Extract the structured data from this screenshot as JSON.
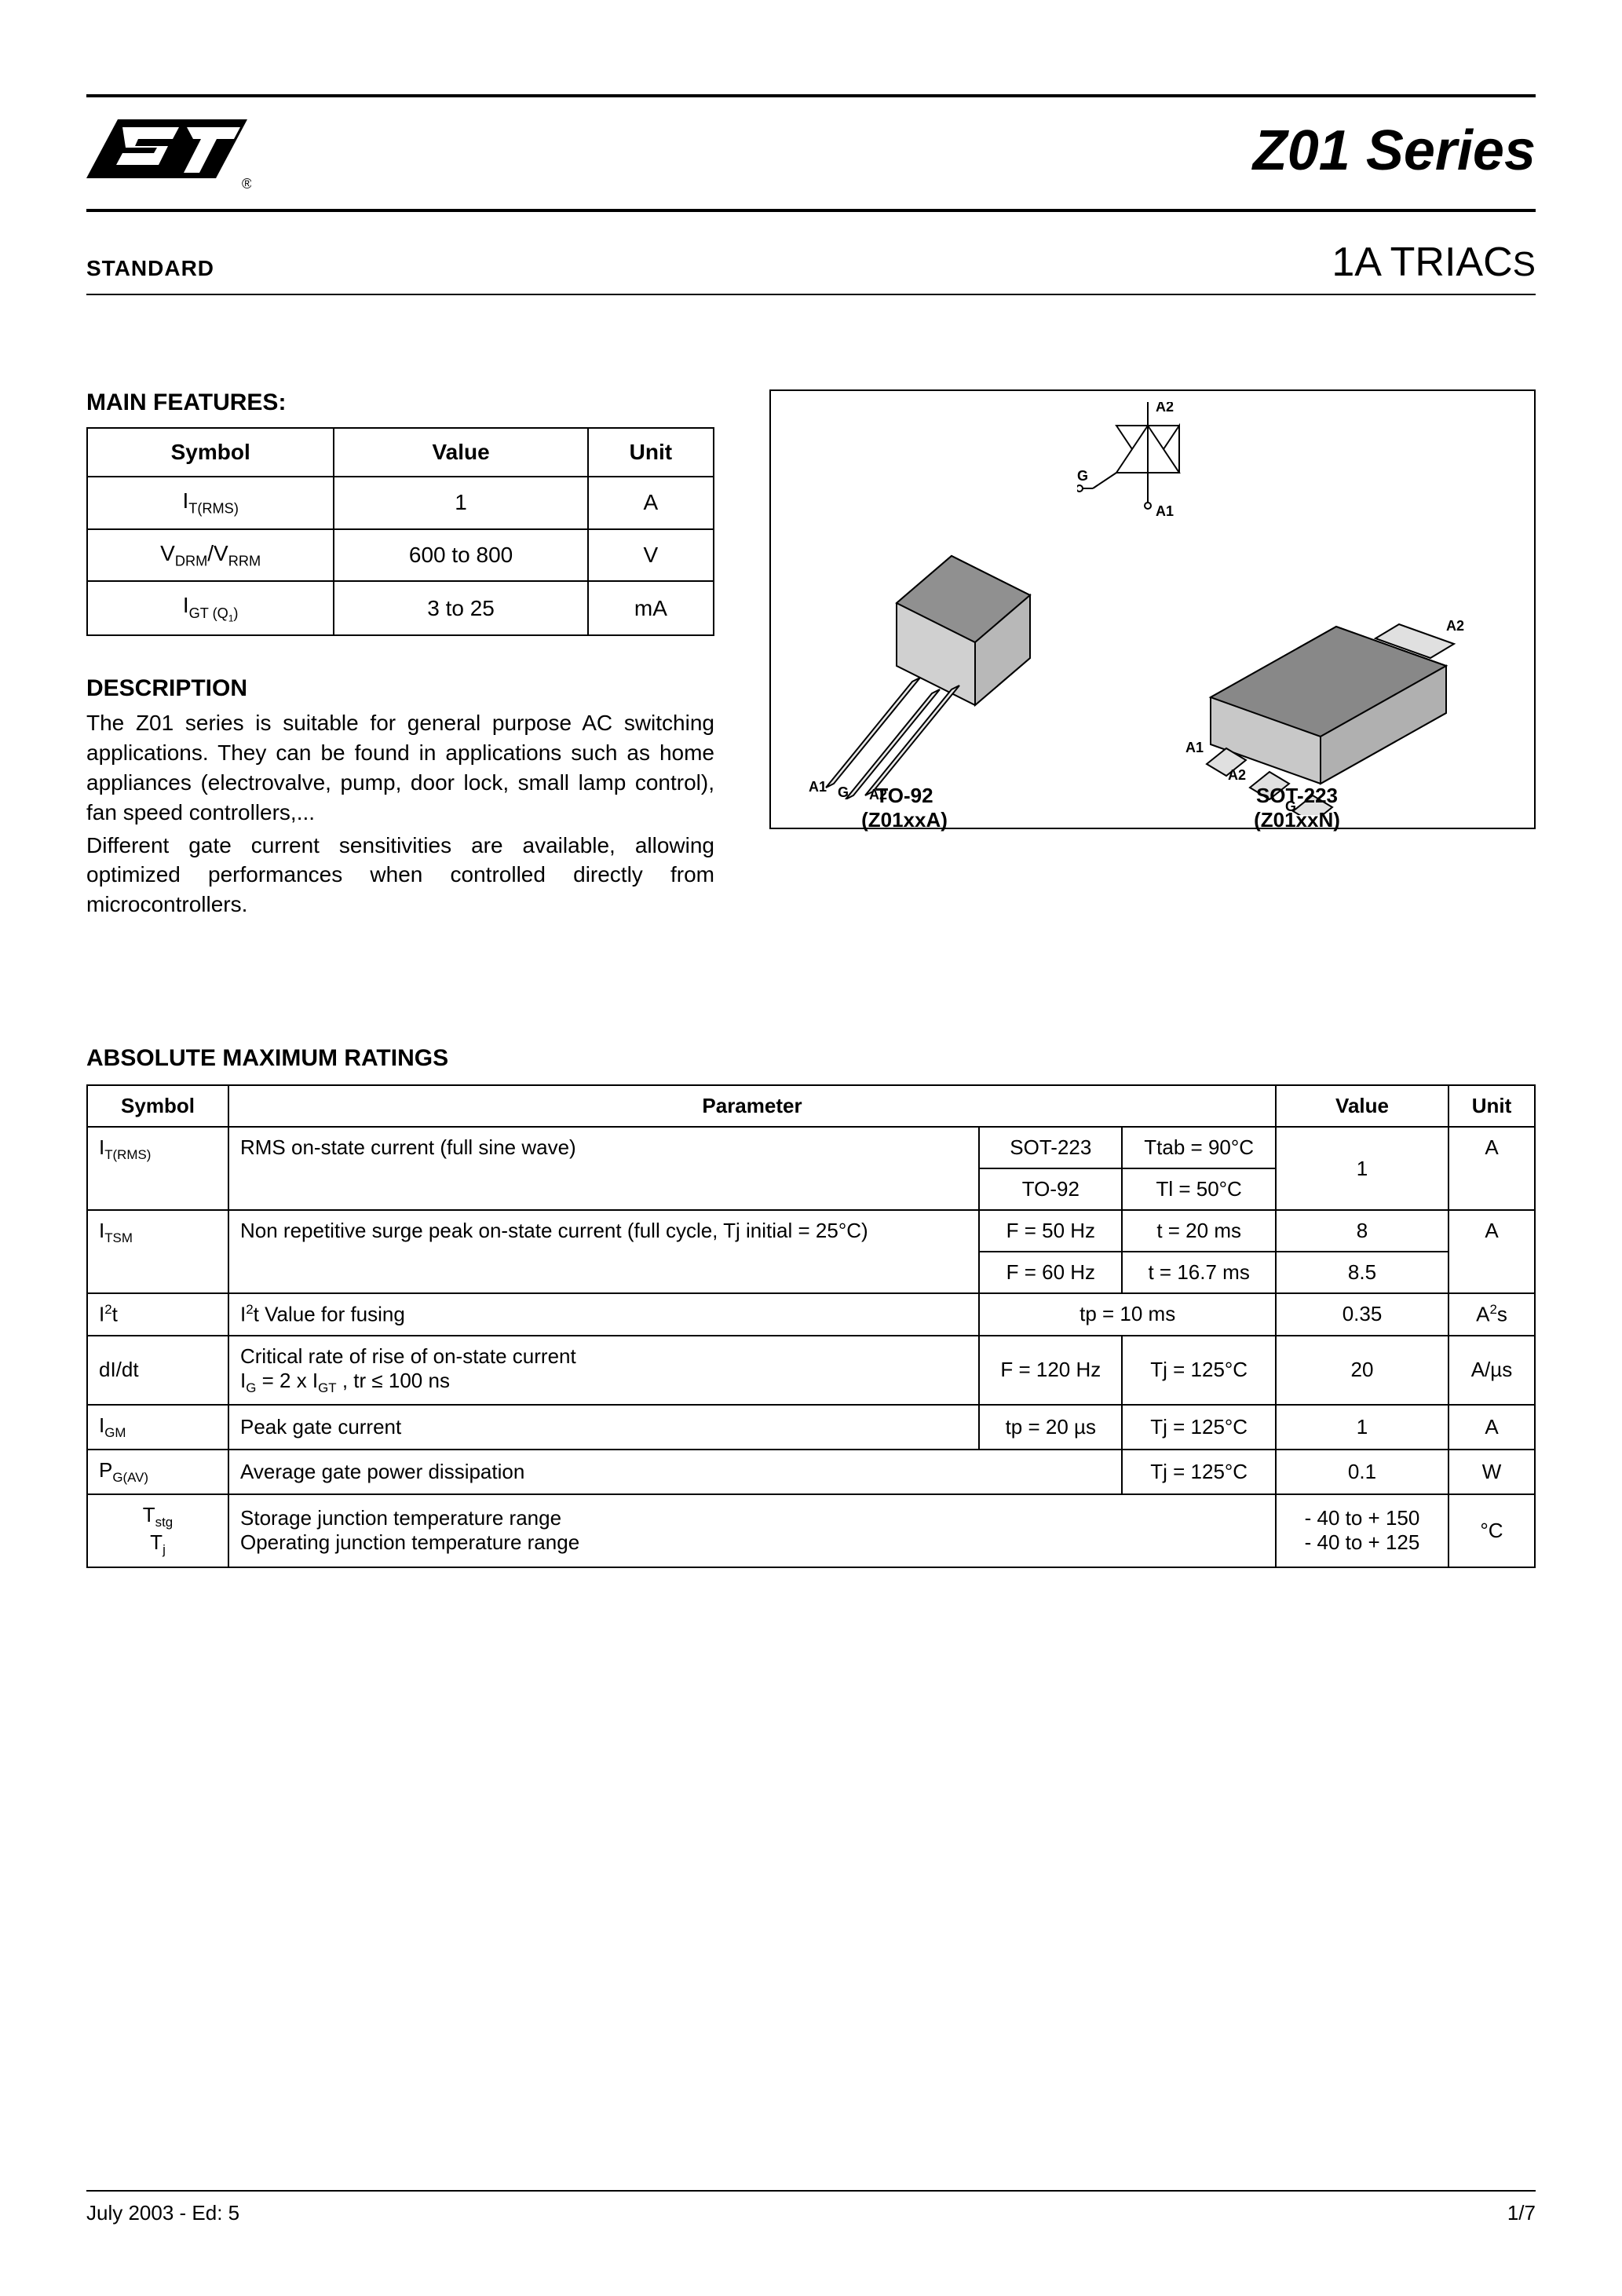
{
  "colors": {
    "text": "#000000",
    "background": "#ffffff",
    "border": "#000000"
  },
  "header": {
    "logo_text": "ST",
    "title": "Z01 Series",
    "standard": "STANDARD",
    "subtitle_prefix": "1A TRIAC",
    "subtitle_suffix": "S"
  },
  "main_features": {
    "heading": "MAIN FEATURES:",
    "columns": [
      "Symbol",
      "Value",
      "Unit"
    ],
    "rows": [
      {
        "symbol_html": "I<sub>T(RMS)</sub>",
        "value": "1",
        "unit": "A"
      },
      {
        "symbol_html": "V<sub>DRM</sub>/V<sub>RRM</sub>",
        "value": "600 to 800",
        "unit": "V"
      },
      {
        "symbol_html": "I<sub>GT (Q<sub>1</sub>)</sub>",
        "value": "3 to 25",
        "unit": "mA"
      }
    ]
  },
  "description": {
    "heading": "DESCRIPTION",
    "p1": "The Z01 series is suitable for general purpose AC switching applications. They can be found in applications such as home appliances (electrovalve, pump, door lock, small lamp control), fan speed controllers,...",
    "p2": "Different gate current sensitivities are available, allowing optimized performances when controlled directly from microcontrollers."
  },
  "packages": {
    "triac_pins": {
      "top": "A2",
      "bottom": "A1",
      "gate": "G"
    },
    "to92": {
      "name": "TO-92",
      "part": "(Z01xxA)",
      "pins": [
        "A1",
        "G",
        "A2"
      ]
    },
    "sot223": {
      "name": "SOT-223",
      "part": "(Z01xxN)",
      "pins": [
        "A1",
        "A2",
        "G",
        "A2"
      ]
    }
  },
  "abs_ratings": {
    "heading": "ABSOLUTE MAXIMUM RATINGS",
    "columns": [
      "Symbol",
      "Parameter",
      "Value",
      "Unit"
    ],
    "r_itrms": {
      "symbol_html": "I<sub>T(RMS)</sub>",
      "param": "RMS on-state current (full sine wave)",
      "sub": [
        {
          "pkg": "SOT-223",
          "cond": "Ttab = 90°C"
        },
        {
          "pkg": "TO-92",
          "cond": "Tl = 50°C"
        }
      ],
      "value": "1",
      "unit": "A"
    },
    "r_itsm": {
      "symbol_html": "I<sub>TSM</sub>",
      "param": "Non repetitive surge peak on-state current  (full cycle, Tj initial = 25°C)",
      "sub": [
        {
          "freq": "F = 50 Hz",
          "t": "t = 20 ms",
          "value": "8"
        },
        {
          "freq": "F = 60 Hz",
          "t": "t = 16.7 ms",
          "value": "8.5"
        }
      ],
      "unit": "A"
    },
    "r_i2t": {
      "symbol_html": "I<sup>2</sup>t",
      "param_html": "I<sup>2</sup>t Value for fusing",
      "cond": "tp = 10 ms",
      "value": "0.35",
      "unit_html": "A<sup>2</sup>s"
    },
    "r_didt": {
      "symbol": "dI/dt",
      "param_html": "Critical rate of rise of on-state current<br>I<sub>G</sub> = 2 x I<sub>GT</sub> , tr ≤ 100 ns",
      "c1": "F = 120 Hz",
      "c2": "Tj = 125°C",
      "value": "20",
      "unit": "A/µs"
    },
    "r_igm": {
      "symbol_html": "I<sub>GM</sub>",
      "param": "Peak gate current",
      "c1": "tp = 20 µs",
      "c2": "Tj = 125°C",
      "value": "1",
      "unit": "A"
    },
    "r_pgav": {
      "symbol_html": "P<sub>G(AV)</sub>",
      "param": "Average gate power dissipation",
      "c2": "Tj = 125°C",
      "value": "0.1",
      "unit": "W"
    },
    "r_temp": {
      "symbol_html": "T<sub>stg</sub><br>T<sub>j</sub>",
      "param": "Storage junction temperature range\nOperating junction temperature range",
      "value_html": "- 40 to + 150<br>- 40 to + 125",
      "unit": "°C"
    }
  },
  "footer": {
    "left": "July 2003 - Ed: 5",
    "right": "1/7"
  }
}
